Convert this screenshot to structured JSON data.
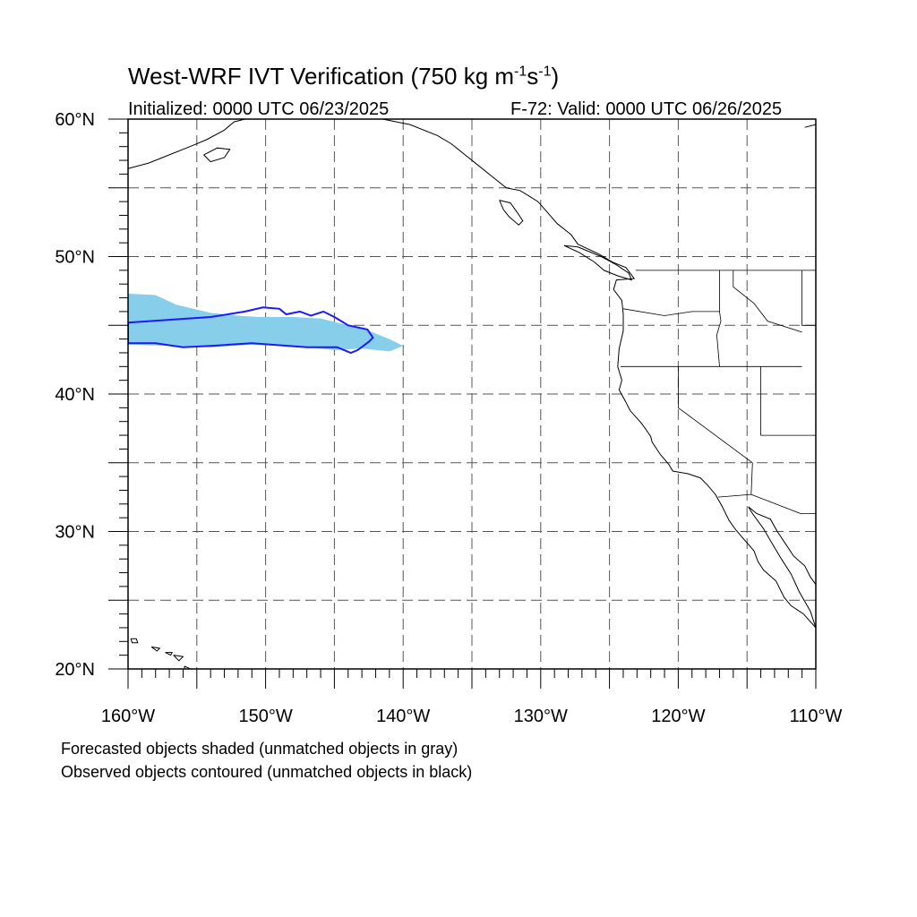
{
  "title": {
    "prefix": "West-WRF IVT Verification (750 kg m",
    "exp1": "-1",
    "mid": "s",
    "exp2": "-1",
    "suffix": ")"
  },
  "initialized": "Initialized: 0000 UTC 06/23/2025",
  "valid": "F-72: Valid: 0000 UTC 06/26/2025",
  "map": {
    "lat_range": [
      20,
      60
    ],
    "lon_range": [
      -160,
      -110
    ],
    "lat_labels": [
      "60°N",
      "50°N",
      "40°N",
      "30°N",
      "20°N"
    ],
    "lon_labels": [
      "160°W",
      "150°W",
      "140°W",
      "130°W",
      "120°W",
      "110°W"
    ],
    "gridlines": "dashed every 5°",
    "colors": {
      "forecast_fill": "#87ceeb",
      "observed_contour": "#1a1aff",
      "coastline": "#000000"
    }
  },
  "objects": {
    "forecast_object": {
      "label": "forecast object (matched)",
      "outline_lonlat": [
        [
          -160,
          47.3
        ],
        [
          -158,
          47.2
        ],
        [
          -156.5,
          46.5
        ],
        [
          -154,
          45.9
        ],
        [
          -152,
          45.7
        ],
        [
          -150.5,
          45.6
        ],
        [
          -148,
          45.6
        ],
        [
          -146,
          45.5
        ],
        [
          -144,
          45.0
        ],
        [
          -142.5,
          44.6
        ],
        [
          -141,
          44.0
        ],
        [
          -140,
          43.5
        ],
        [
          -141,
          43.1
        ],
        [
          -143,
          43.3
        ],
        [
          -145,
          43.2
        ],
        [
          -148,
          43.5
        ],
        [
          -151,
          43.6
        ],
        [
          -154,
          43.4
        ],
        [
          -157,
          43.5
        ],
        [
          -160,
          43.6
        ]
      ]
    },
    "observed_object": {
      "label": "observed object (matched)",
      "outline_lonlat": [
        [
          -160,
          45.2
        ],
        [
          -157,
          45.4
        ],
        [
          -154,
          45.6
        ],
        [
          -151.5,
          46.0
        ],
        [
          -150.2,
          46.3
        ],
        [
          -149,
          46.2
        ],
        [
          -148.5,
          45.8
        ],
        [
          -147.5,
          46.0
        ],
        [
          -146.7,
          45.7
        ],
        [
          -145.8,
          46.0
        ],
        [
          -145.0,
          45.6
        ],
        [
          -144.0,
          45.0
        ],
        [
          -142.6,
          44.7
        ],
        [
          -142.2,
          44.1
        ],
        [
          -142.5,
          43.8
        ],
        [
          -143.3,
          43.2
        ],
        [
          -143.8,
          43.0
        ],
        [
          -144.8,
          43.4
        ],
        [
          -147,
          43.4
        ],
        [
          -151,
          43.7
        ],
        [
          -154,
          43.5
        ],
        [
          -156,
          43.4
        ],
        [
          -158,
          43.7
        ],
        [
          -160,
          43.7
        ]
      ]
    }
  },
  "footer": {
    "line1": "Forecasted objects shaded (unmatched objects in gray)",
    "line2": "Observed objects contoured (unmatched objects in black)"
  }
}
